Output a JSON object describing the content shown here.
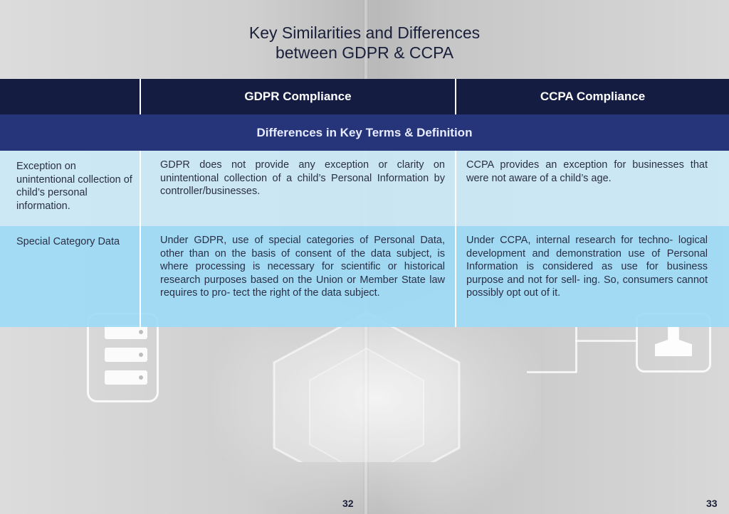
{
  "title": {
    "line1": "Key Similarities and Differences",
    "line2": "between GDPR & CCPA"
  },
  "table": {
    "header": {
      "blank": "",
      "gdpr": "GDPR Compliance",
      "ccpa": "CCPA Compliance"
    },
    "section_title": "Differences in Key Terms & Definition",
    "rows": [
      {
        "label": "Exception on unintentional collection of child’s personal information.",
        "gdpr": "GDPR does not provide any exception or  clarity on unintentional collection of a child’s Personal Information by controller/businesses.",
        "ccpa": "CCPA provides an exception for businesses that were not aware of a child’s age."
      },
      {
        "label": "Special Category Data",
        "gdpr": "Under GDPR, use of special categories of Personal Data, other than on the basis of consent of the data subject, is where processing is necessary for scientific or historical research purposes based on the Union or Member State law requires to pro- tect the right of the data subject.",
        "ccpa": "Under CCPA, internal research for techno- logical development and demonstration use of Personal Information is considered as use for business purpose and not for sell- ing. So, consumers cannot possibly opt out of it."
      }
    ]
  },
  "pages": {
    "left": "32",
    "right": "33"
  },
  "icons": {
    "server": "server-rack-icon",
    "user": "user-icon"
  },
  "colors": {
    "header_bg": "#151c42",
    "section_bg": "#26357a",
    "row1_bg": "#cae8f6",
    "row2_bg": "#9edaf6",
    "title_text": "#1a1f3a"
  }
}
